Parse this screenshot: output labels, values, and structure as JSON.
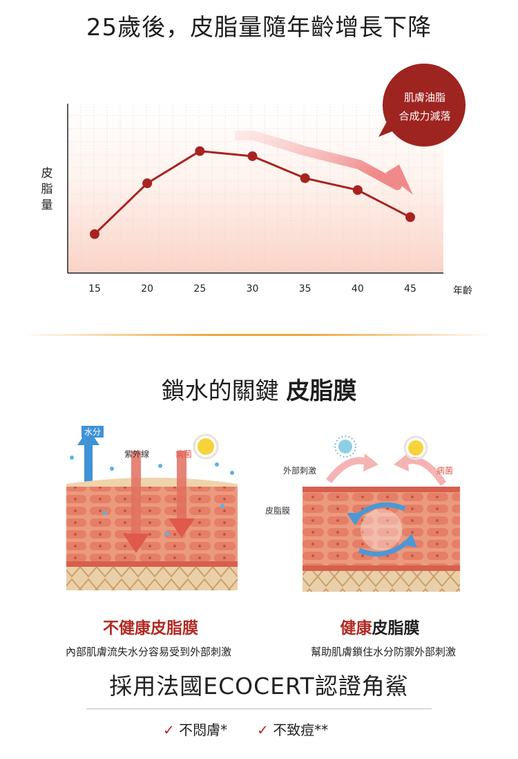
{
  "header": {
    "title": "25歲後，皮脂量隨年齡增長下降"
  },
  "chart_data": {
    "type": "line",
    "ylabel": "皮脂量",
    "xlabel": "年齡",
    "categories": [
      "15",
      "20",
      "25",
      "30",
      "35",
      "40",
      "45"
    ],
    "series": [
      {
        "values": [
          2.3,
          5.3,
          7.2,
          6.9,
          5.6,
          4.9,
          3.3
        ]
      }
    ],
    "ylim": [
      0,
      10
    ],
    "grid": true,
    "annotation": {
      "line1": "肌膚油脂",
      "line2": "合成力減落"
    },
    "colors": {
      "line": "#a8231f",
      "trend_arrow": "#f08a8a",
      "bubble": "#9e2420"
    }
  },
  "section": {
    "title_normal": "鎖水的關鍵 ",
    "title_bold": "皮脂膜"
  },
  "left_panel": {
    "tag_water": "水分",
    "tag_uv": "紫外線",
    "tag_germs": "病菌",
    "caption": "不健康皮脂膜",
    "sub": "內部肌膚流失水分容易受到外部刺激"
  },
  "right_panel": {
    "tag_external": "外部刺激",
    "tag_germs": "病菌",
    "tag_membrane": "皮脂膜",
    "caption_red": "健康",
    "caption_black": "皮脂膜",
    "sub": "幫助肌膚鎖住水分防禦外部刺激"
  },
  "footer": {
    "ecocert": "採用法國ECOCERT認證角鯊",
    "check1": "不悶膚*",
    "check2": "不致痘**"
  }
}
